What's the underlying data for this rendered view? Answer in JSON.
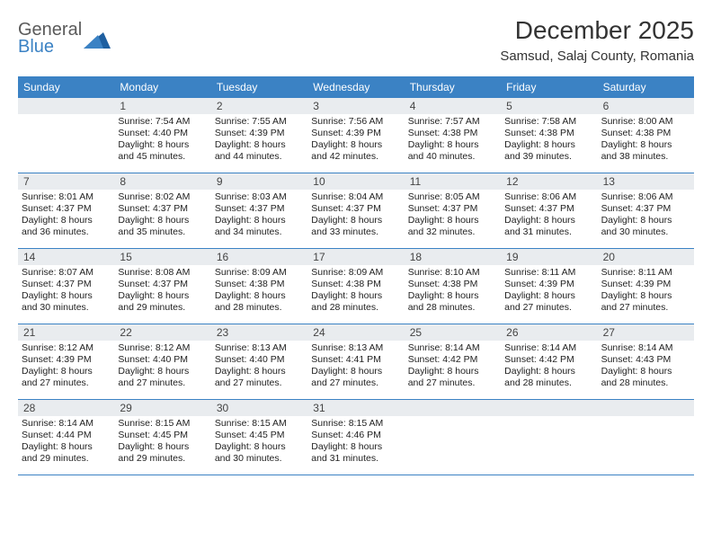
{
  "logo": {
    "line1": "General",
    "line2": "Blue"
  },
  "title": "December 2025",
  "location": "Samsud, Salaj County, Romania",
  "colors": {
    "header_bg": "#3b82c4",
    "header_text": "#ffffff",
    "daynum_bg": "#e9ecef",
    "cell_border": "#3b82c4",
    "logo_gray": "#5a5a5a",
    "logo_blue": "#3b82c4"
  },
  "dow": [
    "Sunday",
    "Monday",
    "Tuesday",
    "Wednesday",
    "Thursday",
    "Friday",
    "Saturday"
  ],
  "weeks": [
    [
      null,
      {
        "n": "1",
        "sr": "Sunrise: 7:54 AM",
        "ss": "Sunset: 4:40 PM",
        "d1": "Daylight: 8 hours",
        "d2": "and 45 minutes."
      },
      {
        "n": "2",
        "sr": "Sunrise: 7:55 AM",
        "ss": "Sunset: 4:39 PM",
        "d1": "Daylight: 8 hours",
        "d2": "and 44 minutes."
      },
      {
        "n": "3",
        "sr": "Sunrise: 7:56 AM",
        "ss": "Sunset: 4:39 PM",
        "d1": "Daylight: 8 hours",
        "d2": "and 42 minutes."
      },
      {
        "n": "4",
        "sr": "Sunrise: 7:57 AM",
        "ss": "Sunset: 4:38 PM",
        "d1": "Daylight: 8 hours",
        "d2": "and 40 minutes."
      },
      {
        "n": "5",
        "sr": "Sunrise: 7:58 AM",
        "ss": "Sunset: 4:38 PM",
        "d1": "Daylight: 8 hours",
        "d2": "and 39 minutes."
      },
      {
        "n": "6",
        "sr": "Sunrise: 8:00 AM",
        "ss": "Sunset: 4:38 PM",
        "d1": "Daylight: 8 hours",
        "d2": "and 38 minutes."
      }
    ],
    [
      {
        "n": "7",
        "sr": "Sunrise: 8:01 AM",
        "ss": "Sunset: 4:37 PM",
        "d1": "Daylight: 8 hours",
        "d2": "and 36 minutes."
      },
      {
        "n": "8",
        "sr": "Sunrise: 8:02 AM",
        "ss": "Sunset: 4:37 PM",
        "d1": "Daylight: 8 hours",
        "d2": "and 35 minutes."
      },
      {
        "n": "9",
        "sr": "Sunrise: 8:03 AM",
        "ss": "Sunset: 4:37 PM",
        "d1": "Daylight: 8 hours",
        "d2": "and 34 minutes."
      },
      {
        "n": "10",
        "sr": "Sunrise: 8:04 AM",
        "ss": "Sunset: 4:37 PM",
        "d1": "Daylight: 8 hours",
        "d2": "and 33 minutes."
      },
      {
        "n": "11",
        "sr": "Sunrise: 8:05 AM",
        "ss": "Sunset: 4:37 PM",
        "d1": "Daylight: 8 hours",
        "d2": "and 32 minutes."
      },
      {
        "n": "12",
        "sr": "Sunrise: 8:06 AM",
        "ss": "Sunset: 4:37 PM",
        "d1": "Daylight: 8 hours",
        "d2": "and 31 minutes."
      },
      {
        "n": "13",
        "sr": "Sunrise: 8:06 AM",
        "ss": "Sunset: 4:37 PM",
        "d1": "Daylight: 8 hours",
        "d2": "and 30 minutes."
      }
    ],
    [
      {
        "n": "14",
        "sr": "Sunrise: 8:07 AM",
        "ss": "Sunset: 4:37 PM",
        "d1": "Daylight: 8 hours",
        "d2": "and 30 minutes."
      },
      {
        "n": "15",
        "sr": "Sunrise: 8:08 AM",
        "ss": "Sunset: 4:37 PM",
        "d1": "Daylight: 8 hours",
        "d2": "and 29 minutes."
      },
      {
        "n": "16",
        "sr": "Sunrise: 8:09 AM",
        "ss": "Sunset: 4:38 PM",
        "d1": "Daylight: 8 hours",
        "d2": "and 28 minutes."
      },
      {
        "n": "17",
        "sr": "Sunrise: 8:09 AM",
        "ss": "Sunset: 4:38 PM",
        "d1": "Daylight: 8 hours",
        "d2": "and 28 minutes."
      },
      {
        "n": "18",
        "sr": "Sunrise: 8:10 AM",
        "ss": "Sunset: 4:38 PM",
        "d1": "Daylight: 8 hours",
        "d2": "and 28 minutes."
      },
      {
        "n": "19",
        "sr": "Sunrise: 8:11 AM",
        "ss": "Sunset: 4:39 PM",
        "d1": "Daylight: 8 hours",
        "d2": "and 27 minutes."
      },
      {
        "n": "20",
        "sr": "Sunrise: 8:11 AM",
        "ss": "Sunset: 4:39 PM",
        "d1": "Daylight: 8 hours",
        "d2": "and 27 minutes."
      }
    ],
    [
      {
        "n": "21",
        "sr": "Sunrise: 8:12 AM",
        "ss": "Sunset: 4:39 PM",
        "d1": "Daylight: 8 hours",
        "d2": "and 27 minutes."
      },
      {
        "n": "22",
        "sr": "Sunrise: 8:12 AM",
        "ss": "Sunset: 4:40 PM",
        "d1": "Daylight: 8 hours",
        "d2": "and 27 minutes."
      },
      {
        "n": "23",
        "sr": "Sunrise: 8:13 AM",
        "ss": "Sunset: 4:40 PM",
        "d1": "Daylight: 8 hours",
        "d2": "and 27 minutes."
      },
      {
        "n": "24",
        "sr": "Sunrise: 8:13 AM",
        "ss": "Sunset: 4:41 PM",
        "d1": "Daylight: 8 hours",
        "d2": "and 27 minutes."
      },
      {
        "n": "25",
        "sr": "Sunrise: 8:14 AM",
        "ss": "Sunset: 4:42 PM",
        "d1": "Daylight: 8 hours",
        "d2": "and 27 minutes."
      },
      {
        "n": "26",
        "sr": "Sunrise: 8:14 AM",
        "ss": "Sunset: 4:42 PM",
        "d1": "Daylight: 8 hours",
        "d2": "and 28 minutes."
      },
      {
        "n": "27",
        "sr": "Sunrise: 8:14 AM",
        "ss": "Sunset: 4:43 PM",
        "d1": "Daylight: 8 hours",
        "d2": "and 28 minutes."
      }
    ],
    [
      {
        "n": "28",
        "sr": "Sunrise: 8:14 AM",
        "ss": "Sunset: 4:44 PM",
        "d1": "Daylight: 8 hours",
        "d2": "and 29 minutes."
      },
      {
        "n": "29",
        "sr": "Sunrise: 8:15 AM",
        "ss": "Sunset: 4:45 PM",
        "d1": "Daylight: 8 hours",
        "d2": "and 29 minutes."
      },
      {
        "n": "30",
        "sr": "Sunrise: 8:15 AM",
        "ss": "Sunset: 4:45 PM",
        "d1": "Daylight: 8 hours",
        "d2": "and 30 minutes."
      },
      {
        "n": "31",
        "sr": "Sunrise: 8:15 AM",
        "ss": "Sunset: 4:46 PM",
        "d1": "Daylight: 8 hours",
        "d2": "and 31 minutes."
      },
      null,
      null,
      null
    ]
  ]
}
